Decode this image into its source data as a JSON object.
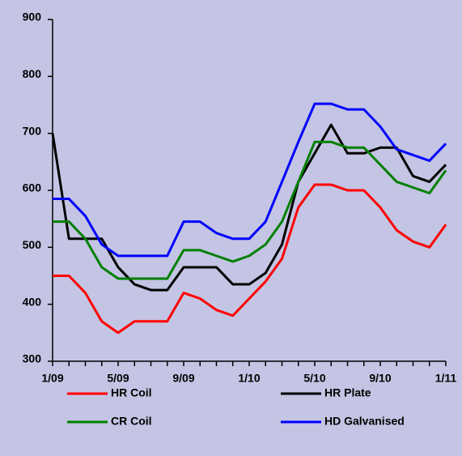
{
  "chart_data": {
    "type": "line",
    "categories": [
      "1/09",
      null,
      null,
      null,
      "5/09",
      null,
      null,
      null,
      "9/09",
      null,
      null,
      null,
      "1/10",
      null,
      null,
      null,
      "5/10",
      null,
      null,
      null,
      "9/10",
      null,
      null,
      null,
      "1/11"
    ],
    "series": [
      {
        "name": "HR Coil",
        "color": "#ff0000",
        "values": [
          450,
          450,
          420,
          370,
          350,
          370,
          370,
          370,
          420,
          410,
          390,
          380,
          410,
          440,
          480,
          570,
          610,
          610,
          600,
          600,
          570,
          530,
          510,
          500,
          540
        ]
      },
      {
        "name": "HR Plate",
        "color": "#000000",
        "values": [
          700,
          515,
          515,
          515,
          465,
          435,
          425,
          425,
          465,
          465,
          465,
          435,
          435,
          455,
          505,
          615,
          665,
          715,
          665,
          665,
          675,
          675,
          625,
          615,
          645
        ]
      },
      {
        "name": "CR Coil",
        "color": "#008000",
        "values": [
          545,
          545,
          515,
          465,
          445,
          445,
          445,
          445,
          495,
          495,
          485,
          475,
          485,
          505,
          545,
          615,
          685,
          685,
          675,
          675,
          645,
          615,
          605,
          595,
          635
        ]
      },
      {
        "name": "HD Galvanised",
        "color": "#0000ff",
        "values": [
          585,
          585,
          555,
          505,
          485,
          485,
          485,
          485,
          545,
          545,
          525,
          515,
          515,
          545,
          615,
          685,
          752,
          752,
          742,
          742,
          712,
          672,
          662,
          652,
          682
        ]
      }
    ],
    "ylim": [
      300,
      900
    ],
    "yticks": [
      300,
      400,
      500,
      600,
      700,
      800,
      900
    ]
  }
}
